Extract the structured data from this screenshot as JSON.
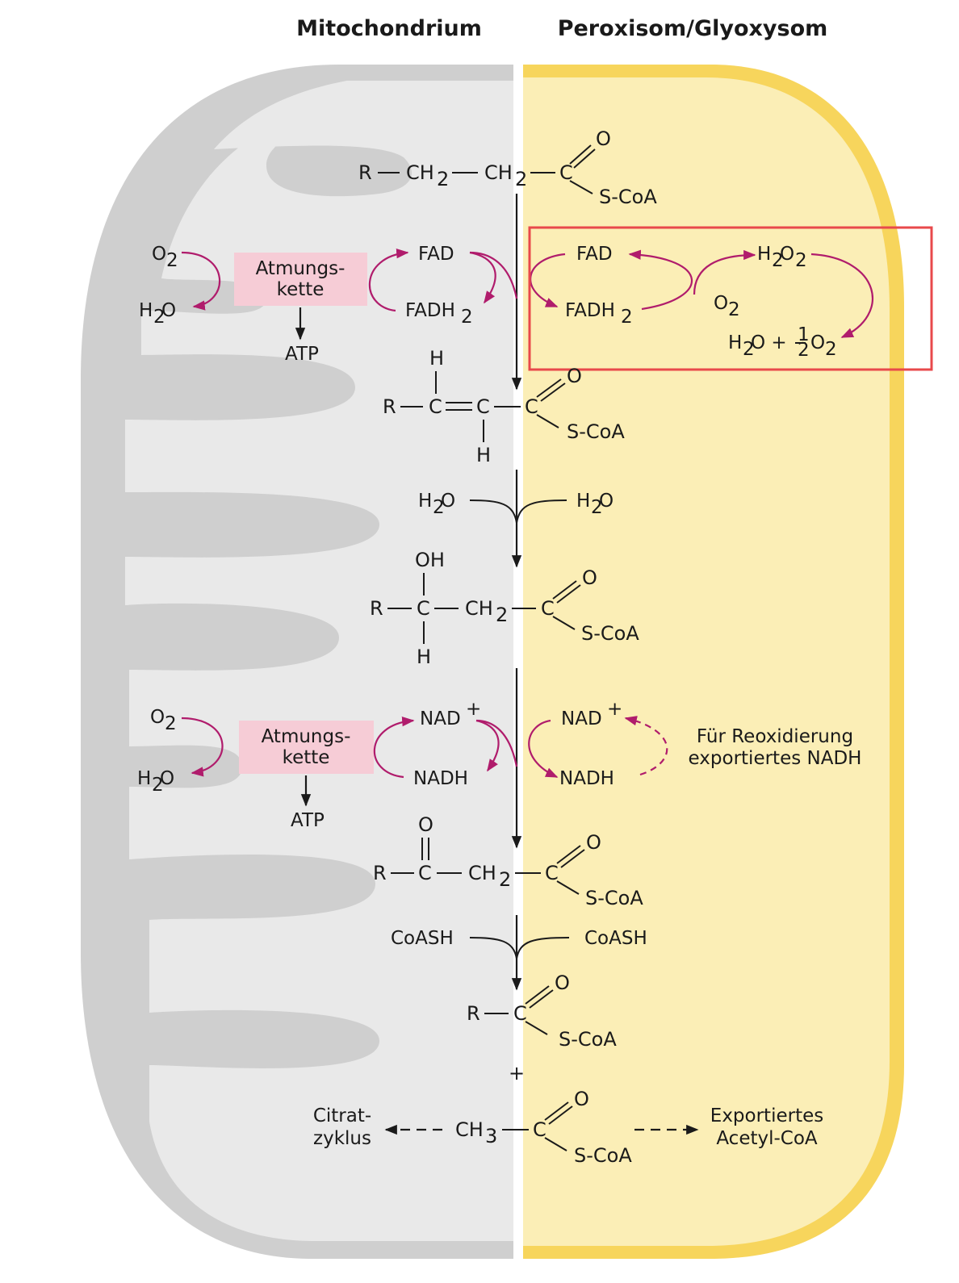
{
  "headers": {
    "mitochondrion": "Mitochondrium",
    "peroxisome": "Peroxisom/Glyoxysom"
  },
  "colors": {
    "mito_fill": "#e9e9e9",
    "mito_cristae": "#cfcfcf",
    "perox_fill": "#fbeeb6",
    "perox_border": "#f7d55c",
    "arrow_accent": "#b01c6c",
    "chain_box": "#f6ccd6",
    "highlight_box": "#e8494b"
  },
  "molecules": {
    "m1": {
      "r": "R",
      "ch2a": "CH",
      "ch2b": "CH",
      "sub2": "2",
      "c": "C",
      "o": "O",
      "scoa": "S-CoA"
    },
    "m2": {
      "r": "R",
      "c1": "C",
      "c2": "C",
      "c3": "C",
      "h_top": "H",
      "h_bot": "H",
      "o": "O",
      "scoa": "S-CoA"
    },
    "m3": {
      "r": "R",
      "c1": "C",
      "oh": "OH",
      "h": "H",
      "ch2": "CH",
      "sub2": "2",
      "c": "C",
      "o": "O",
      "scoa": "S-CoA"
    },
    "m4": {
      "r": "R",
      "c1": "C",
      "o_top": "O",
      "ch2": "CH",
      "sub2": "2",
      "c": "C",
      "o": "O",
      "scoa": "S-CoA"
    },
    "m5": {
      "r": "R",
      "c": "C",
      "o": "O",
      "scoa": "S-CoA"
    },
    "plus": "+",
    "m6": {
      "ch3": "CH",
      "sub3": "3",
      "c": "C",
      "o": "O",
      "scoa": "S-CoA"
    }
  },
  "step1": {
    "mito": {
      "o2": "O",
      "o2_sub": "2",
      "h2o_h": "H",
      "h2o_sub": "2",
      "h2o_o": "O",
      "chain_l1": "Atmungs-",
      "chain_l2": "kette",
      "atp": "ATP",
      "fad": "FAD",
      "fadh2": "FADH",
      "fadh2_sub": "2"
    },
    "perox": {
      "fad": "FAD",
      "fadh2": "FADH",
      "fadh2_sub": "2",
      "h2o2_h": "H",
      "h2o2_s1": "2",
      "h2o2_o": "O",
      "h2o2_s2": "2",
      "o2": "O",
      "o2_sub": "2",
      "prod_h": "H",
      "prod_s": "2",
      "prod_o": "O +",
      "frac_num": "1",
      "frac_den": "2",
      "prod_o2": "O",
      "prod_o2_sub": "2"
    }
  },
  "step2": {
    "h2o_left_h": "H",
    "h2o_left_sub": "2",
    "h2o_left_o": "O",
    "h2o_right_h": "H",
    "h2o_right_sub": "2",
    "h2o_right_o": "O"
  },
  "step3": {
    "mito": {
      "o2": "O",
      "o2_sub": "2",
      "h2o_h": "H",
      "h2o_sub": "2",
      "h2o_o": "O",
      "chain_l1": "Atmungs-",
      "chain_l2": "kette",
      "atp": "ATP",
      "nad": "NAD",
      "nad_sup": "+",
      "nadh": "NADH"
    },
    "perox": {
      "nad": "NAD",
      "nad_sup": "+",
      "nadh": "NADH",
      "note_l1": "Für Reoxidierung",
      "note_l2": "exportiertes NADH"
    }
  },
  "step4": {
    "coash_left": "CoASH",
    "coash_right": "CoASH"
  },
  "outputs": {
    "citrat_l1": "Citrat-",
    "citrat_l2": "zyklus",
    "export_l1": "Exportiertes",
    "export_l2": "Acetyl-CoA"
  }
}
